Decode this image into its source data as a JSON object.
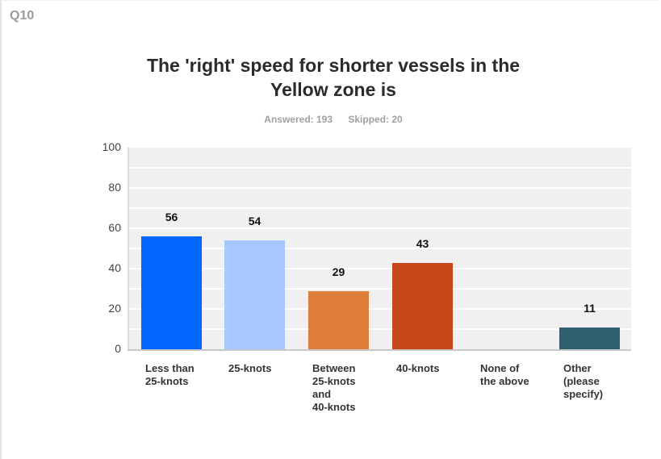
{
  "question": {
    "number": "Q10",
    "title": "The 'right' speed for shorter vessels in the Yellow zone is",
    "answered": "Answered: 193",
    "skipped": "Skipped: 20"
  },
  "axis": {
    "ticks": [
      "100",
      "80",
      "60",
      "40",
      "20",
      "0"
    ]
  },
  "bars": [
    {
      "label": "Less than\n25-knots",
      "value": 56,
      "value_label": "56",
      "color": "#0066ff"
    },
    {
      "label": "25-knots",
      "value": 54,
      "value_label": "54",
      "color": "#a6c8ff"
    },
    {
      "label": "Between\n25-knots\nand\n40-knots",
      "value": 29,
      "value_label": "29",
      "color": "#df7e38"
    },
    {
      "label": "40-knots",
      "value": 43,
      "value_label": "43",
      "color": "#c8461a"
    },
    {
      "label": "None of\nthe above",
      "value": 0,
      "value_label": "",
      "color": "#7b7b7b"
    },
    {
      "label": "Other\n(please\nspecify)",
      "value": 11,
      "value_label": "11",
      "color": "#2f5f6e"
    }
  ],
  "chart_data": {
    "type": "bar",
    "title": "The 'right' speed for shorter vessels in the Yellow zone is",
    "subtitle": "Answered: 193    Skipped: 20",
    "categories": [
      "Less than 25-knots",
      "25-knots",
      "Between 25-knots and 40-knots",
      "40-knots",
      "None of the above",
      "Other (please specify)"
    ],
    "values": [
      56,
      54,
      29,
      43,
      0,
      11
    ],
    "xlabel": "",
    "ylabel": "",
    "ylim": [
      0,
      100
    ],
    "yticks": [
      0,
      20,
      40,
      60,
      80,
      100
    ],
    "grid": true,
    "legend": "none"
  }
}
